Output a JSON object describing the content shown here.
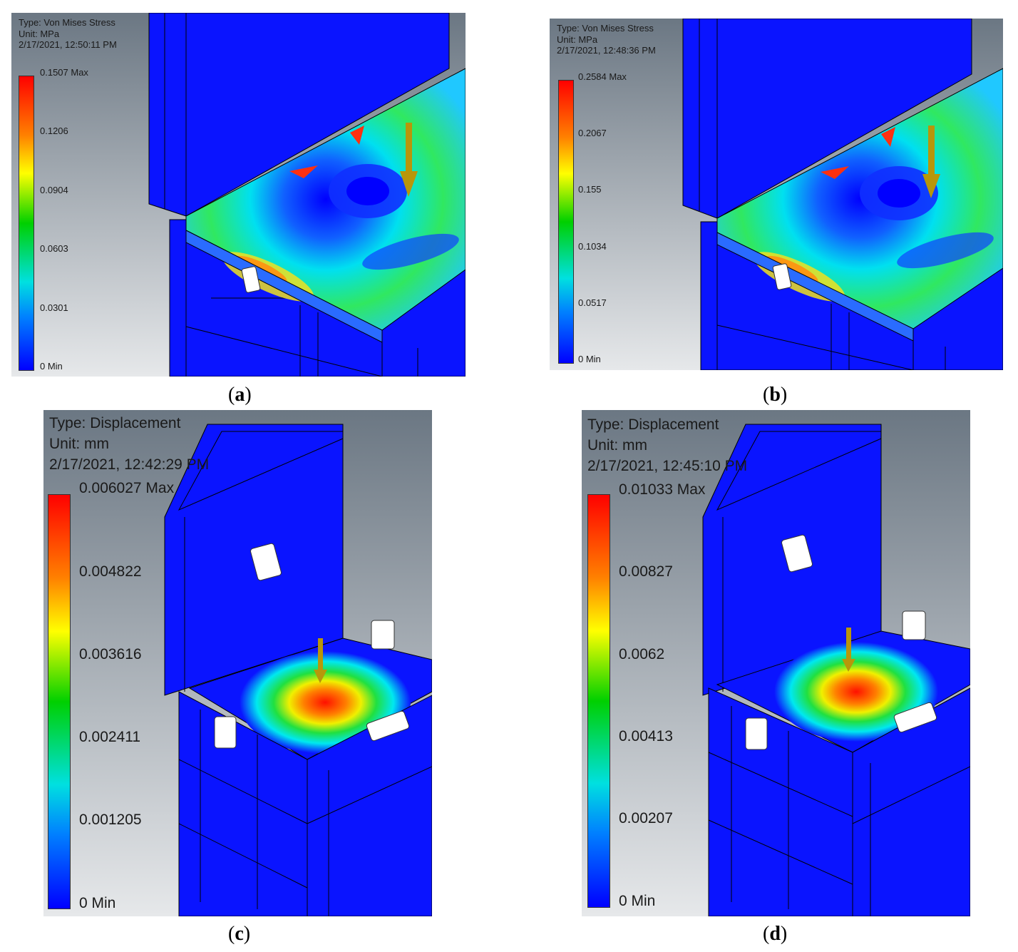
{
  "panels": [
    {
      "id": "a",
      "type_label": "Type: Von Mises Stress",
      "unit_label": "Unit: MPa",
      "timestamp": "2/17/2021, 12:50:11 PM",
      "ticks": [
        "0.1507 Max",
        "0.1206",
        "0.0904",
        "0.0603",
        "0.0301",
        "0 Min"
      ],
      "caption_letter": "a"
    },
    {
      "id": "b",
      "type_label": "Type: Von Mises Stress",
      "unit_label": "Unit: MPa",
      "timestamp": "2/17/2021, 12:48:36 PM",
      "ticks": [
        "0.2584 Max",
        "0.2067",
        "0.155",
        "0.1034",
        "0.0517",
        "0 Min"
      ],
      "caption_letter": "b"
    },
    {
      "id": "c",
      "type_label": "Type: Displacement",
      "unit_label": "Unit: mm",
      "timestamp": "2/17/2021, 12:42:29 PM",
      "ticks": [
        "0.006027 Max",
        "0.004822",
        "0.003616",
        "0.002411",
        "0.001205",
        "0 Min"
      ],
      "caption_letter": "c"
    },
    {
      "id": "d",
      "type_label": "Type: Displacement",
      "unit_label": "Unit: mm",
      "timestamp": "2/17/2021, 12:45:10 PM",
      "ticks": [
        "0.01033 Max",
        "0.00827",
        "0.0062",
        "0.00413",
        "0.00207",
        "0 Min"
      ],
      "caption_letter": "d"
    }
  ],
  "colors": {
    "model_blue": "#0a1aff",
    "background_top": "#6e7a86",
    "background_bottom": "#e4e6e9",
    "arrow": "#b8960a"
  }
}
